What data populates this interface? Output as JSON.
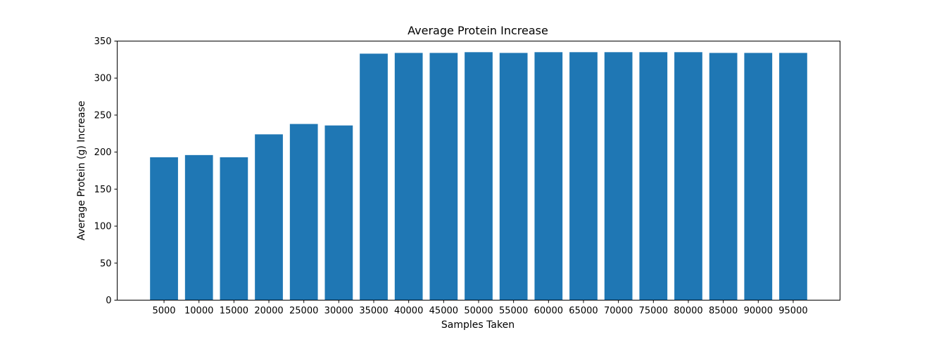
{
  "chart_data": {
    "type": "bar",
    "title": "Average Protein Increase",
    "xlabel": "Samples Taken",
    "ylabel": "Average Protein (g) Increase",
    "categories": [
      "5000",
      "10000",
      "15000",
      "20000",
      "25000",
      "30000",
      "35000",
      "40000",
      "45000",
      "50000",
      "55000",
      "60000",
      "65000",
      "70000",
      "75000",
      "80000",
      "85000",
      "90000",
      "95000"
    ],
    "values": [
      193,
      196,
      193,
      224,
      238,
      236,
      333,
      334,
      334,
      335,
      334,
      335,
      335,
      335,
      335,
      335,
      334,
      334,
      334
    ],
    "ylim": [
      0,
      350
    ],
    "yticks": [
      0,
      50,
      100,
      150,
      200,
      250,
      300,
      350
    ],
    "bar_color": "#1f77b4",
    "grid": false
  }
}
